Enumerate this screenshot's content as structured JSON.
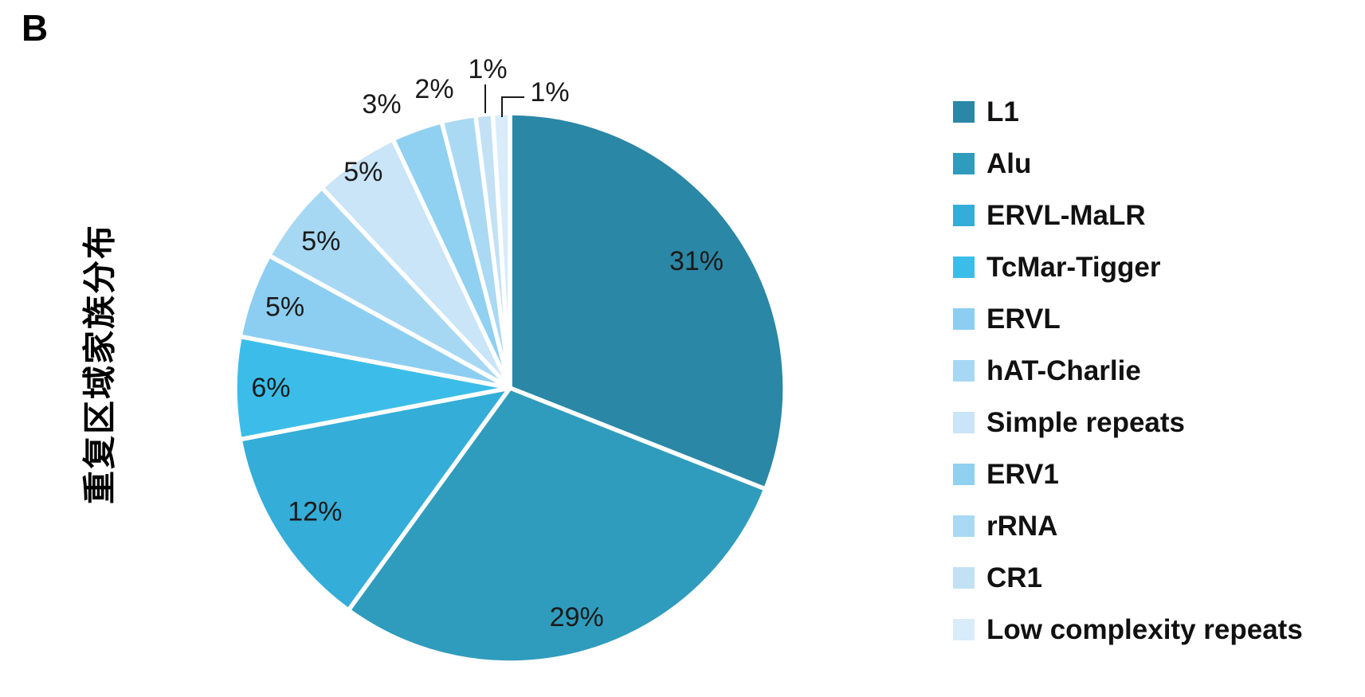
{
  "panel_label": "B",
  "chart_data": {
    "type": "pie",
    "title": "重复区域家族分布",
    "direction": "clockwise",
    "start_angle_deg": 0,
    "legend_position": "right",
    "grid": false,
    "text_color": "#1a1a1a",
    "categories": [
      "L1",
      "Alu",
      "ERVL-MaLR",
      "TcMar-Tigger",
      "ERVL",
      "hAT-Charlie",
      "Simple repeats",
      "ERV1",
      "rRNA",
      "CR1",
      "Low complexity repeats"
    ],
    "values": [
      31,
      29,
      12,
      6,
      5,
      5,
      5,
      3,
      2,
      1,
      1
    ],
    "slices": [
      {
        "label": "L1",
        "value": 31,
        "pct_label": "31%",
        "color": "#2a87a6"
      },
      {
        "label": "Alu",
        "value": 29,
        "pct_label": "29%",
        "color": "#2f9cbd"
      },
      {
        "label": "ERVL-MaLR",
        "value": 12,
        "pct_label": "12%",
        "color": "#34add8"
      },
      {
        "label": "TcMar-Tigger",
        "value": 6,
        "pct_label": "6%",
        "color": "#3cbde9"
      },
      {
        "label": "ERVL",
        "value": 5,
        "pct_label": "5%",
        "color": "#8ccef1"
      },
      {
        "label": "hAT-Charlie",
        "value": 5,
        "pct_label": "5%",
        "color": "#a7d8f3"
      },
      {
        "label": "Simple repeats",
        "value": 5,
        "pct_label": "5%",
        "color": "#c9e5f7"
      },
      {
        "label": "ERV1",
        "value": 3,
        "pct_label": "3%",
        "color": "#90d0f0"
      },
      {
        "label": "rRNA",
        "value": 2,
        "pct_label": "2%",
        "color": "#aad9f3"
      },
      {
        "label": "CR1",
        "value": 1,
        "pct_label": "1%",
        "color": "#c2e1f5"
      },
      {
        "label": "Low complexity repeats",
        "value": 1,
        "pct_label": "1%",
        "color": "#d8ecfa"
      }
    ]
  }
}
